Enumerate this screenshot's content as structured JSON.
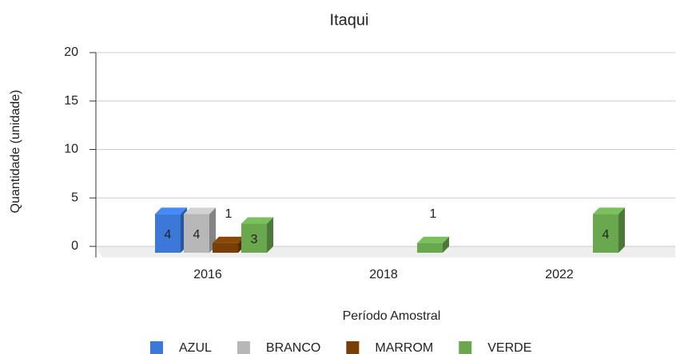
{
  "chart_data": {
    "type": "bar3d",
    "title": "Itaqui",
    "categories": [
      "2016",
      "2018",
      "2022"
    ],
    "series": [
      {
        "name": "AZUL",
        "color": "#3c78d8",
        "values": [
          4,
          null,
          null
        ]
      },
      {
        "name": "BRANCO",
        "color": "#b7b7b7",
        "values": [
          4,
          null,
          null
        ]
      },
      {
        "name": "MARROM",
        "color": "#783f04",
        "values": [
          1,
          null,
          null
        ]
      },
      {
        "name": "VERDE",
        "color": "#6aa84f",
        "values": [
          3,
          1,
          4
        ]
      }
    ],
    "x_label": "Período Amostral",
    "y_label": "Quantidade (unidade)",
    "ylim": [
      0,
      20
    ],
    "yticks": [
      0,
      5,
      10,
      15,
      20
    ],
    "grid": true,
    "legend": "bottom",
    "data_labels": true
  }
}
